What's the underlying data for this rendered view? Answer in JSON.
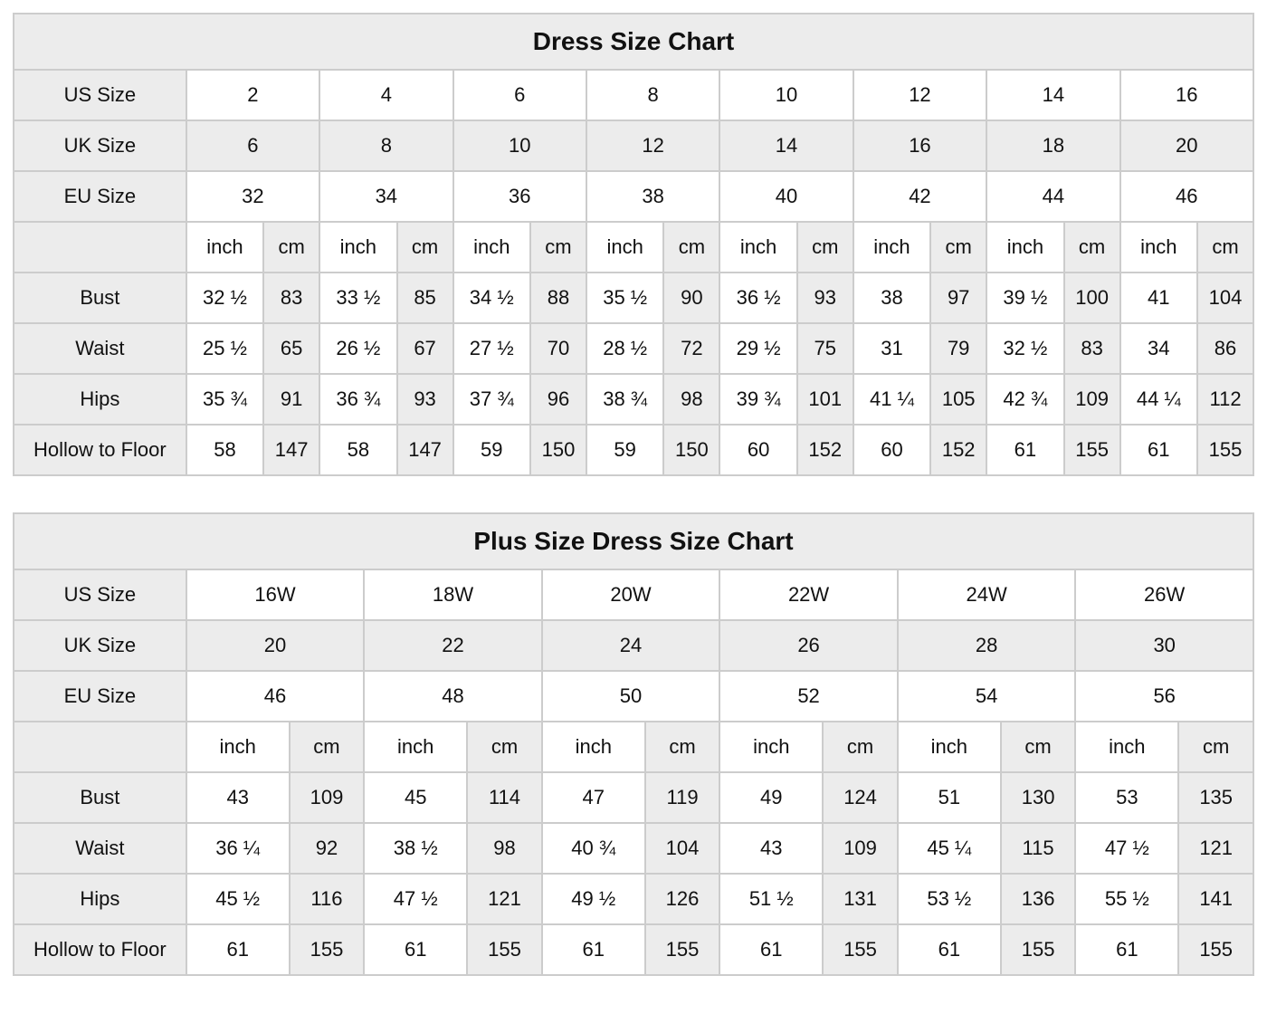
{
  "colors": {
    "cell_shade": "#ececec",
    "border": "#cccccc",
    "text": "#111111",
    "background": "#ffffff"
  },
  "tables": [
    {
      "id": "dress-size-chart",
      "title": "Dress Size Chart",
      "unit_labels": [
        "inch",
        "cm"
      ],
      "size_rows": [
        {
          "label": "US Size",
          "shaded": false,
          "values": [
            "2",
            "4",
            "6",
            "8",
            "10",
            "12",
            "14",
            "16"
          ]
        },
        {
          "label": "UK Size",
          "shaded": true,
          "values": [
            "6",
            "8",
            "10",
            "12",
            "14",
            "16",
            "18",
            "20"
          ]
        },
        {
          "label": "EU Size",
          "shaded": false,
          "values": [
            "32",
            "34",
            "36",
            "38",
            "40",
            "42",
            "44",
            "46"
          ]
        }
      ],
      "measure_rows": [
        {
          "label": "Bust",
          "values": [
            [
              "32 ½",
              "83"
            ],
            [
              "33 ½",
              "85"
            ],
            [
              "34 ½",
              "88"
            ],
            [
              "35 ½",
              "90"
            ],
            [
              "36 ½",
              "93"
            ],
            [
              "38",
              "97"
            ],
            [
              "39 ½",
              "100"
            ],
            [
              "41",
              "104"
            ]
          ]
        },
        {
          "label": "Waist",
          "values": [
            [
              "25 ½",
              "65"
            ],
            [
              "26 ½",
              "67"
            ],
            [
              "27 ½",
              "70"
            ],
            [
              "28 ½",
              "72"
            ],
            [
              "29 ½",
              "75"
            ],
            [
              "31",
              "79"
            ],
            [
              "32 ½",
              "83"
            ],
            [
              "34",
              "86"
            ]
          ]
        },
        {
          "label": "Hips",
          "values": [
            [
              "35 ¾",
              "91"
            ],
            [
              "36 ¾",
              "93"
            ],
            [
              "37 ¾",
              "96"
            ],
            [
              "38 ¾",
              "98"
            ],
            [
              "39 ¾",
              "101"
            ],
            [
              "41 ¼",
              "105"
            ],
            [
              "42 ¾",
              "109"
            ],
            [
              "44 ¼",
              "112"
            ]
          ]
        },
        {
          "label": "Hollow to Floor",
          "values": [
            [
              "58",
              "147"
            ],
            [
              "58",
              "147"
            ],
            [
              "59",
              "150"
            ],
            [
              "59",
              "150"
            ],
            [
              "60",
              "152"
            ],
            [
              "60",
              "152"
            ],
            [
              "61",
              "155"
            ],
            [
              "61",
              "155"
            ]
          ]
        }
      ]
    },
    {
      "id": "plus-size-dress-size-chart",
      "title": "Plus Size Dress Size Chart",
      "unit_labels": [
        "inch",
        "cm"
      ],
      "size_rows": [
        {
          "label": "US Size",
          "shaded": false,
          "values": [
            "16W",
            "18W",
            "20W",
            "22W",
            "24W",
            "26W"
          ]
        },
        {
          "label": "UK Size",
          "shaded": true,
          "values": [
            "20",
            "22",
            "24",
            "26",
            "28",
            "30"
          ]
        },
        {
          "label": "EU Size",
          "shaded": false,
          "values": [
            "46",
            "48",
            "50",
            "52",
            "54",
            "56"
          ]
        }
      ],
      "measure_rows": [
        {
          "label": "Bust",
          "values": [
            [
              "43",
              "109"
            ],
            [
              "45",
              "114"
            ],
            [
              "47",
              "119"
            ],
            [
              "49",
              "124"
            ],
            [
              "51",
              "130"
            ],
            [
              "53",
              "135"
            ]
          ]
        },
        {
          "label": "Waist",
          "values": [
            [
              "36 ¼",
              "92"
            ],
            [
              "38 ½",
              "98"
            ],
            [
              "40 ¾",
              "104"
            ],
            [
              "43",
              "109"
            ],
            [
              "45 ¼",
              "115"
            ],
            [
              "47 ½",
              "121"
            ]
          ]
        },
        {
          "label": "Hips",
          "values": [
            [
              "45 ½",
              "116"
            ],
            [
              "47 ½",
              "121"
            ],
            [
              "49 ½",
              "126"
            ],
            [
              "51 ½",
              "131"
            ],
            [
              "53 ½",
              "136"
            ],
            [
              "55 ½",
              "141"
            ]
          ]
        },
        {
          "label": "Hollow to Floor",
          "values": [
            [
              "61",
              "155"
            ],
            [
              "61",
              "155"
            ],
            [
              "61",
              "155"
            ],
            [
              "61",
              "155"
            ],
            [
              "61",
              "155"
            ],
            [
              "61",
              "155"
            ]
          ]
        }
      ]
    }
  ]
}
